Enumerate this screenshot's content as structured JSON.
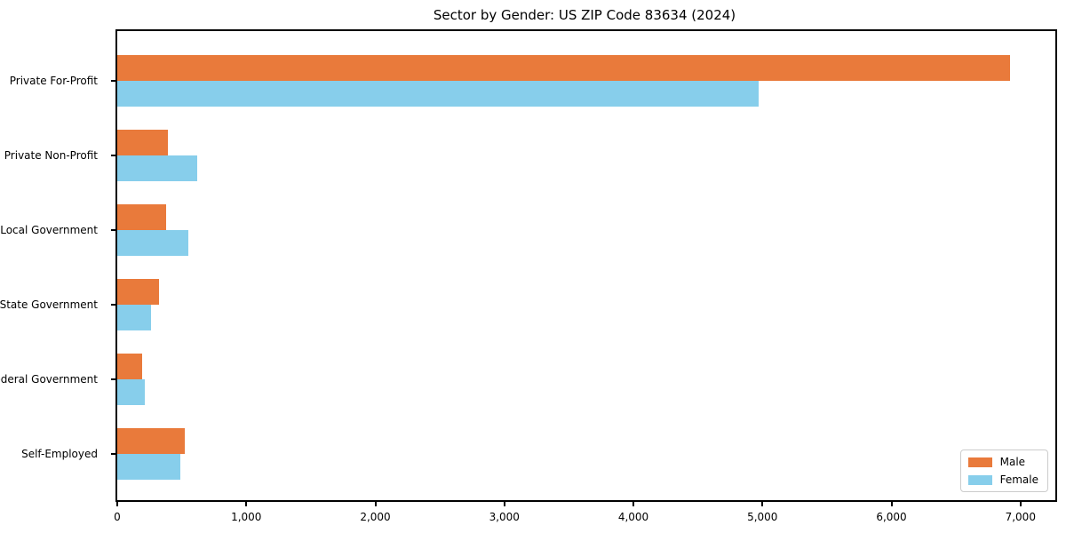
{
  "chart_data": {
    "type": "bar",
    "orientation": "horizontal",
    "title": "Sector by Gender: US ZIP Code 83634 (2024)",
    "categories": [
      "Private For-Profit",
      "Private Non-Profit",
      "Local Government",
      "State Government",
      "Federal Government",
      "Self-Employed"
    ],
    "series": [
      {
        "name": "Male",
        "color": "#E97A3B",
        "values": [
          6920,
          390,
          380,
          325,
          195,
          525
        ]
      },
      {
        "name": "Female",
        "color": "#87CEEB",
        "values": [
          4970,
          620,
          550,
          260,
          210,
          490
        ]
      }
    ],
    "xlabel": "",
    "ylabel": "",
    "xlim": [
      0,
      7270
    ],
    "x_ticks": [
      0,
      1000,
      2000,
      3000,
      4000,
      5000,
      6000,
      7000
    ],
    "x_tick_labels": [
      "0",
      "1,000",
      "2,000",
      "3,000",
      "4,000",
      "5,000",
      "6,000",
      "7,000"
    ],
    "grid": false,
    "legend_position": "lower right",
    "axis_color": "#000000",
    "background_color": "#ffffff"
  }
}
